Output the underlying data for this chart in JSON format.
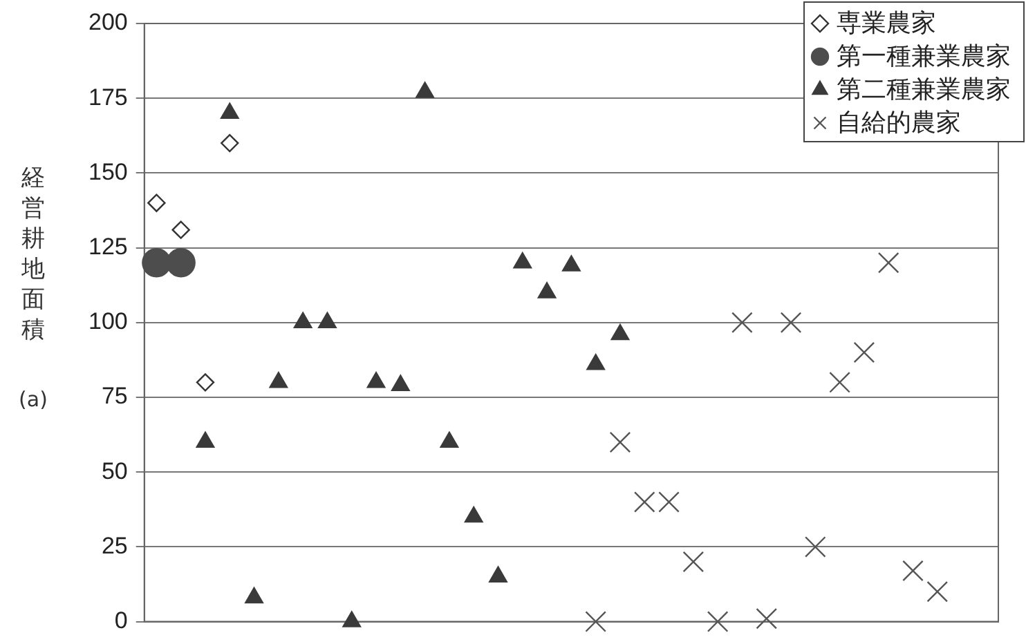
{
  "chart_data": {
    "type": "scatter",
    "ylabel": "経営耕地面積 (a)",
    "categories": [
      null,
      null,
      null,
      null,
      null,
      null,
      null,
      null,
      null,
      null,
      null,
      null,
      null,
      null,
      null,
      null,
      null,
      null,
      null,
      null,
      null,
      null,
      null,
      null,
      null,
      null,
      null,
      null,
      null,
      null,
      null,
      null,
      null,
      null,
      null
    ],
    "series": [
      {
        "name": "専業農家",
        "color": "#333333",
        "marker": "diamond",
        "values": [
          140,
          131,
          80,
          160,
          null,
          null,
          null,
          null,
          null,
          null,
          null,
          null,
          null,
          null,
          null,
          null,
          null,
          null,
          null,
          null,
          null,
          null,
          null,
          null,
          null,
          null,
          null,
          null,
          null,
          null,
          null,
          null,
          null,
          null,
          null
        ]
      },
      {
        "name": "第一種兼業農家",
        "color": "#4d4d4d",
        "marker": "circle",
        "values": [
          120,
          120,
          null,
          null,
          null,
          null,
          null,
          null,
          null,
          null,
          null,
          null,
          null,
          null,
          null,
          null,
          null,
          null,
          null,
          null,
          null,
          null,
          null,
          null,
          null,
          null,
          null,
          null,
          null,
          null,
          null,
          null,
          null,
          null,
          null
        ]
      },
      {
        "name": "第二種兼業農家",
        "color": "#3a3a3a",
        "marker": "triangle",
        "values": [
          null,
          null,
          60,
          170,
          8,
          80,
          100,
          100,
          0,
          80,
          79,
          177,
          60,
          35,
          15,
          120,
          110,
          119,
          86,
          96,
          null,
          null,
          null,
          null,
          null,
          null,
          null,
          null,
          null,
          null,
          null,
          null,
          null,
          null,
          null
        ]
      },
      {
        "name": "自給的農家",
        "color": "#555555",
        "marker": "cross",
        "values": [
          null,
          null,
          null,
          null,
          null,
          null,
          null,
          null,
          null,
          null,
          null,
          null,
          null,
          null,
          null,
          null,
          null,
          null,
          0,
          60,
          40,
          40,
          20,
          0,
          100,
          1,
          100,
          25,
          80,
          90,
          120,
          17,
          10,
          null,
          null
        ]
      }
    ],
    "ylim": [
      0,
      200
    ],
    "yticks": [
      0,
      25,
      50,
      75,
      100,
      125,
      150,
      175,
      200
    ],
    "grid": "y",
    "legend": "top right"
  }
}
